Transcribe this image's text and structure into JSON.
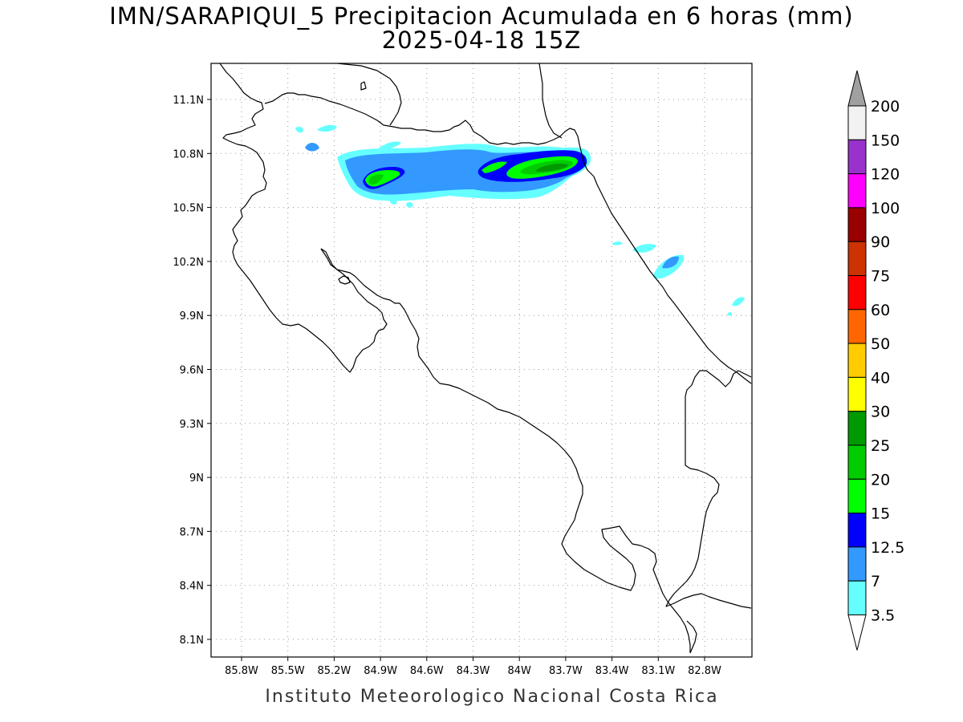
{
  "title": {
    "line1": "IMN/SARAPIQUI_5 Precipitacion Acumulada en 6 horas (mm)",
    "line2": "2025-04-18 15Z"
  },
  "credit": "Instituto Meteorologico Nacional Costa Rica",
  "map": {
    "x_ticks": [
      "85.8W",
      "85.5W",
      "85.2W",
      "84.9W",
      "84.6W",
      "84.3W",
      "84W",
      "83.7W",
      "83.4W",
      "83.1W",
      "82.8W"
    ],
    "y_ticks": [
      "11.1N",
      "10.8N",
      "10.5N",
      "10.2N",
      "9.9N",
      "9.6N",
      "9.3N",
      "9N",
      "8.7N",
      "8.4N",
      "8.1N"
    ],
    "grid": "dotted"
  },
  "colorbar": {
    "labels": [
      "200",
      "150",
      "120",
      "100",
      "90",
      "75",
      "60",
      "50",
      "40",
      "30",
      "25",
      "20",
      "15",
      "12.5",
      "7",
      "3.5"
    ],
    "colors": [
      "#f2f2f2",
      "#9932cc",
      "#ff00ff",
      "#990000",
      "#cc3300",
      "#ff0000",
      "#ff6600",
      "#ffcc00",
      "#ffff00",
      "#009900",
      "#00cc00",
      "#00ff00",
      "#0000ff",
      "#3399ff",
      "#66ffff"
    ],
    "top_cap_color": "#a0a0a0",
    "bottom_cap_color": "#ffffff"
  }
}
